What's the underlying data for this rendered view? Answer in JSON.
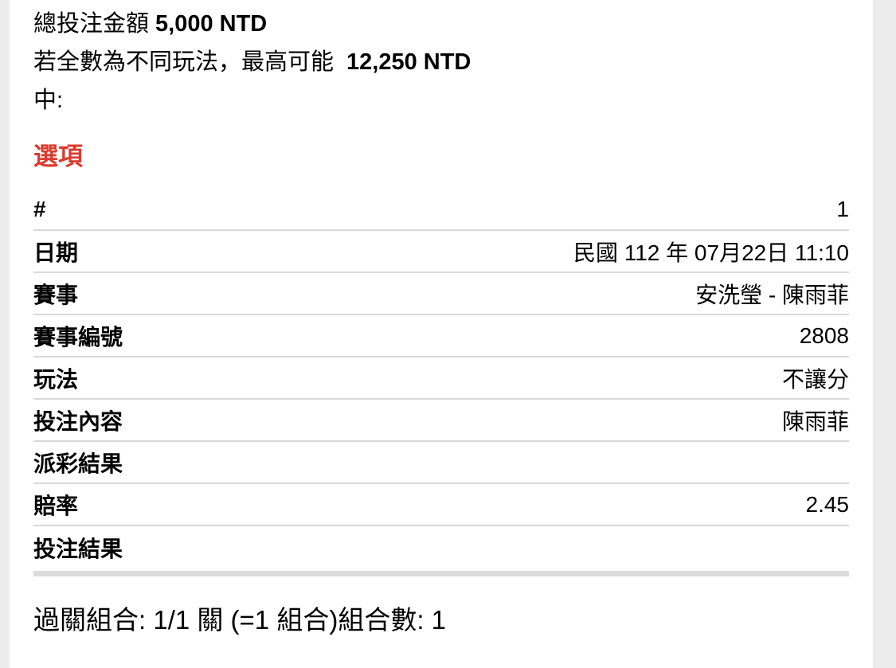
{
  "theme": {
    "page_background": "#ececec",
    "card_background": "#ffffff",
    "text_color": "#000000",
    "accent_red": "#dc3a2d",
    "separator_color": "#d9d9d9",
    "divider_bar_color": "#dcdcdc"
  },
  "summary": {
    "total_label": "總投注金額",
    "total_value": "5,000 NTD",
    "max_prefix": "若全數為不同玩法，最高可能",
    "max_value": "12,250 NTD",
    "max_suffix": "中:"
  },
  "options": {
    "heading": "選項",
    "rows": [
      {
        "label": "#",
        "value": "1"
      },
      {
        "label": "日期",
        "value": "民國 112 年 07月22日 11:10"
      },
      {
        "label": "賽事",
        "value": "安洗瑩 - 陳雨菲"
      },
      {
        "label": "賽事編號",
        "value": "2808"
      },
      {
        "label": "玩法",
        "value": "不讓分"
      },
      {
        "label": "投注內容",
        "value": "陳雨菲"
      },
      {
        "label": "派彩結果",
        "value": ""
      },
      {
        "label": "賠率",
        "value": "2.45"
      },
      {
        "label": "投注結果",
        "value": ""
      }
    ]
  },
  "footer": {
    "combo_text": "過關組合: 1/1 關 (=1 組合)組合數: 1"
  }
}
